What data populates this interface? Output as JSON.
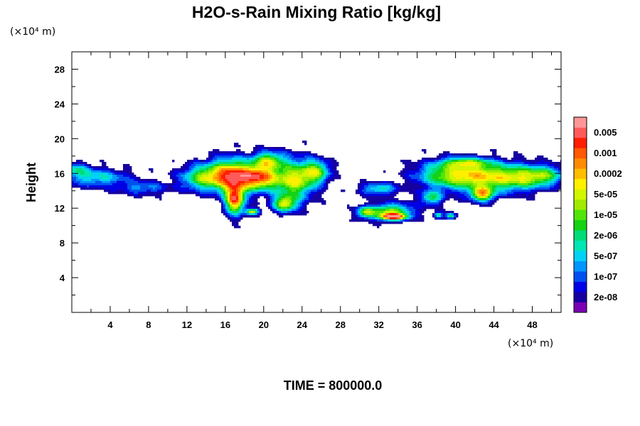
{
  "chart_data": {
    "type": "heatmap",
    "title": "H2O-s-Rain Mixing Ratio [kg/kg]",
    "xlabel": "",
    "ylabel": "Height",
    "x_unit": "(×10⁴ m)",
    "y_unit": "(×10⁴ m)",
    "xlim": [
      0,
      51
    ],
    "ylim": [
      0,
      30
    ],
    "x_ticks": [
      4,
      8,
      12,
      16,
      20,
      24,
      28,
      32,
      36,
      40,
      44,
      48
    ],
    "y_ticks": [
      4,
      8,
      12,
      16,
      20,
      24,
      28
    ],
    "grid": false,
    "colorbar": {
      "placement": "right",
      "levels": [
        {
          "label": "",
          "color": "#7a00b4"
        },
        {
          "label": "2e-08",
          "color": "#1500a0"
        },
        {
          "label": "",
          "color": "#0000e6"
        },
        {
          "label": "1e-07",
          "color": "#0050f0"
        },
        {
          "label": "",
          "color": "#0096ff"
        },
        {
          "label": "5e-07",
          "color": "#00d2f5"
        },
        {
          "label": "",
          "color": "#00e6b4"
        },
        {
          "label": "2e-06",
          "color": "#00dc78"
        },
        {
          "label": "",
          "color": "#14d214"
        },
        {
          "label": "1e-05",
          "color": "#50e60a"
        },
        {
          "label": "",
          "color": "#a0eb00"
        },
        {
          "label": "5e-05",
          "color": "#d2f500"
        },
        {
          "label": "",
          "color": "#fff000"
        },
        {
          "label": "0.0002",
          "color": "#ffbe00"
        },
        {
          "label": "",
          "color": "#ff8c00"
        },
        {
          "label": "0.001",
          "color": "#ff5a00"
        },
        {
          "label": "",
          "color": "#ff1e00"
        },
        {
          "label": "0.005",
          "color": "#ff5a5a"
        },
        {
          "label": "",
          "color": "#ff9696"
        }
      ]
    },
    "fields": [
      {
        "region": "left-tail",
        "x": [
          0,
          9
        ],
        "y": [
          13.5,
          17
        ],
        "peak_level": 6
      },
      {
        "region": "main-cell",
        "x": [
          13,
          27
        ],
        "y": [
          11,
          19
        ],
        "peak_level": 16
      },
      {
        "region": "small-cell",
        "x": [
          30,
          36.5
        ],
        "y": [
          10.5,
          15
        ],
        "peak_level": 15
      },
      {
        "region": "small-blobs",
        "x": [
          37.5,
          40
        ],
        "y": [
          10.8,
          11.8
        ],
        "peak_level": 8
      },
      {
        "region": "right-cell",
        "x": [
          35,
          51
        ],
        "y": [
          11.5,
          18
        ],
        "peak_level": 12
      }
    ]
  },
  "footer": {
    "time_label": "TIME = 800000.0"
  }
}
